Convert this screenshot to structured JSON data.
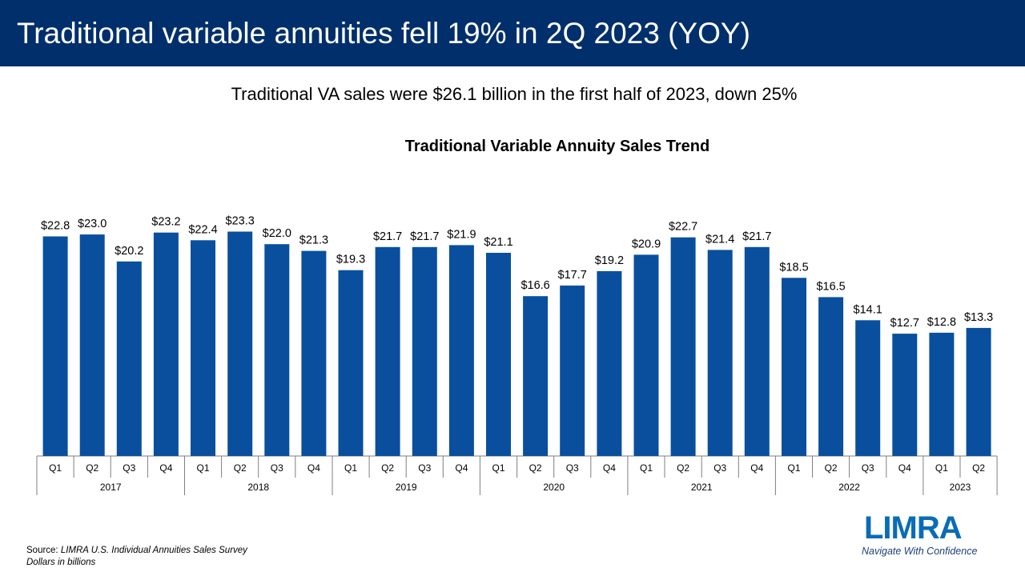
{
  "header": {
    "title": "Traditional variable annuities fell 19% in 2Q 2023 (YOY)"
  },
  "subtitle": "Traditional VA sales were $26.1 billion in the first half of 2023, down 25%",
  "footer": {
    "source_prefix": "Source: ",
    "source_name": "LIMRA U.S. Individual Annuities Sales Survey",
    "units_note": "Dollars in billions"
  },
  "logo": {
    "wordmark": "LIMRA",
    "tagline": "Navigate With Confidence"
  },
  "colors": {
    "header_bg": "#002f6c",
    "bar": "#0a4f9e",
    "logo_blue": "#0a6cb5"
  },
  "chart_data": {
    "type": "bar",
    "title": "Traditional Variable Annuity Sales Trend",
    "xlabel": "",
    "ylabel": "",
    "ylim": [
      0,
      25
    ],
    "value_prefix": "$",
    "grid": false,
    "legend": "none",
    "groups": [
      {
        "label": "2017",
        "quarters": [
          "Q1",
          "Q2",
          "Q3",
          "Q4"
        ]
      },
      {
        "label": "2018",
        "quarters": [
          "Q1",
          "Q2",
          "Q3",
          "Q4"
        ]
      },
      {
        "label": "2019",
        "quarters": [
          "Q1",
          "Q2",
          "Q3",
          "Q4"
        ]
      },
      {
        "label": "2020",
        "quarters": [
          "Q1",
          "Q2",
          "Q3",
          "Q4"
        ]
      },
      {
        "label": "2021",
        "quarters": [
          "Q1",
          "Q2",
          "Q3",
          "Q4"
        ]
      },
      {
        "label": "2022",
        "quarters": [
          "Q1",
          "Q2",
          "Q3",
          "Q4"
        ]
      },
      {
        "label": "2023",
        "quarters": [
          "Q1",
          "Q2"
        ]
      }
    ],
    "values": [
      22.8,
      23.0,
      20.2,
      23.2,
      22.4,
      23.3,
      22.0,
      21.3,
      19.3,
      21.7,
      21.7,
      21.9,
      21.1,
      16.6,
      17.7,
      19.2,
      20.9,
      22.7,
      21.4,
      21.7,
      18.5,
      16.5,
      14.1,
      12.7,
      12.8,
      13.3
    ]
  }
}
